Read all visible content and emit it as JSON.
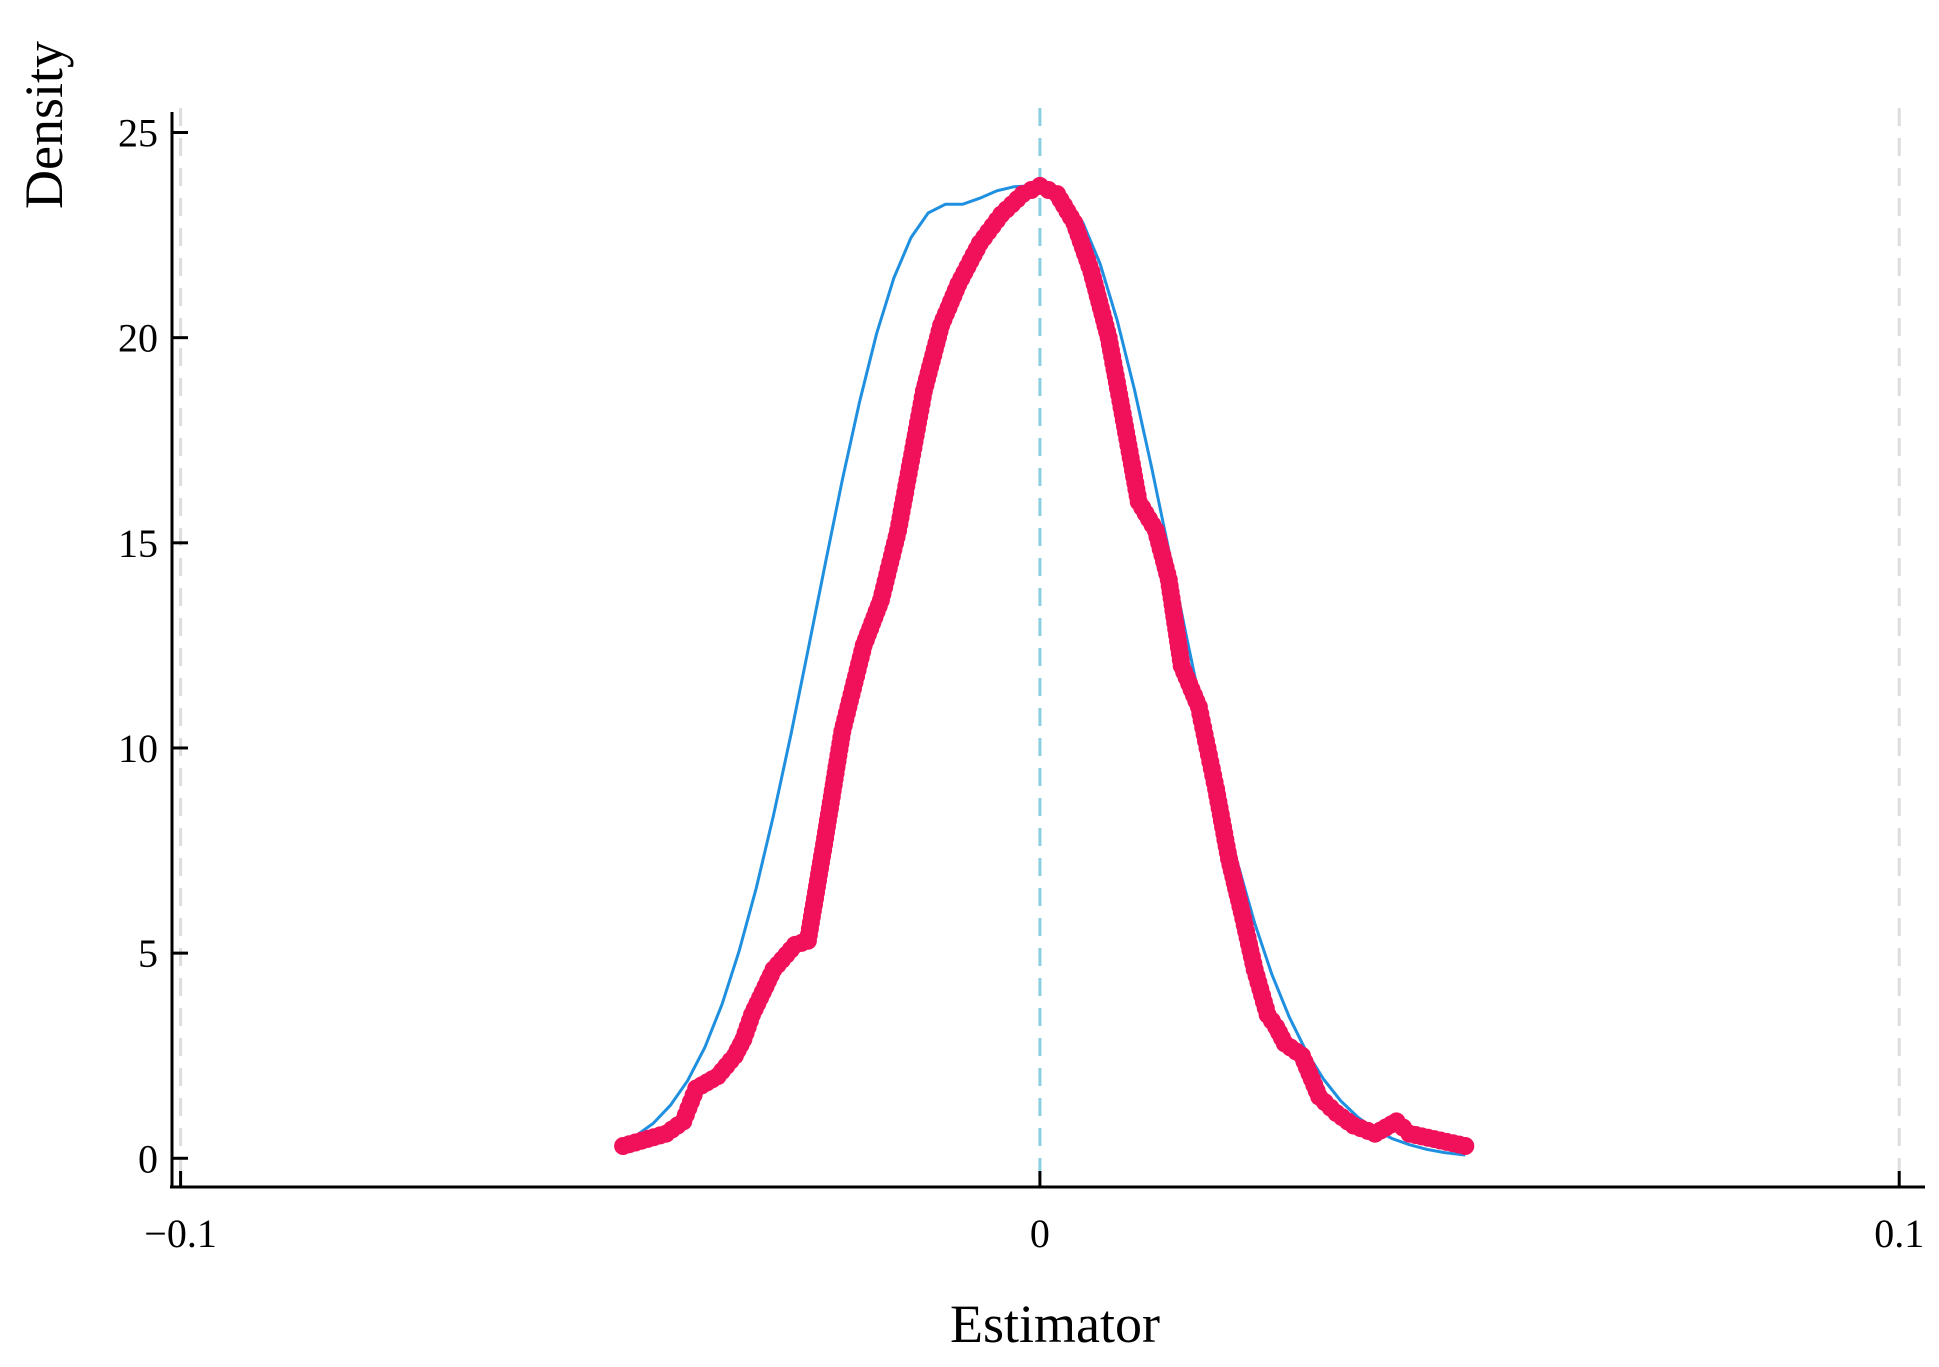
{
  "chart_data": {
    "type": "scatter",
    "title": "",
    "xlabel": "Estimator",
    "ylabel": "Density",
    "xlim": [
      -0.101,
      0.103
    ],
    "ylim": [
      -0.7,
      25.5
    ],
    "x_ticks": [
      {
        "value": -0.1,
        "label": "−0.1"
      },
      {
        "value": 0,
        "label": "0"
      },
      {
        "value": 0.1,
        "label": "0.1"
      }
    ],
    "y_ticks": [
      {
        "value": 0,
        "label": "0"
      },
      {
        "value": 5,
        "label": "5"
      },
      {
        "value": 10,
        "label": "10"
      },
      {
        "value": 15,
        "label": "15"
      },
      {
        "value": 20,
        "label": "20"
      },
      {
        "value": 25,
        "label": "25"
      }
    ],
    "grid": false,
    "vertical_reference_lines": [
      {
        "x": -0.1,
        "color": "#dddddd",
        "style": "dashed"
      },
      {
        "x": 0,
        "color": "#89cfe0",
        "style": "dashed"
      },
      {
        "x": 0.1,
        "color": "#dddddd",
        "style": "dashed"
      }
    ],
    "colors": {
      "points": "#f0115a",
      "normal_curve": "#1f8fe0",
      "axis": "#000000"
    },
    "series": [
      {
        "type": "line",
        "description_color": "#1f8fe0",
        "x": [
          -0.0485,
          -0.047,
          -0.045,
          -0.043,
          -0.041,
          -0.039,
          -0.037,
          -0.035,
          -0.033,
          -0.031,
          -0.029,
          -0.027,
          -0.025,
          -0.023,
          -0.021,
          -0.019,
          -0.017,
          -0.015,
          -0.013,
          -0.011,
          -0.009,
          -0.007,
          -0.005,
          -0.003,
          -0.001,
          0,
          0.001,
          0.003,
          0.005,
          0.007,
          0.009,
          0.011,
          0.013,
          0.015,
          0.017,
          0.019,
          0.021,
          0.023,
          0.025,
          0.027,
          0.029,
          0.031,
          0.033,
          0.035,
          0.037,
          0.039,
          0.041,
          0.043,
          0.045,
          0.047,
          0.0495
        ],
        "y": [
          0.38,
          0.55,
          0.85,
          1.29,
          1.89,
          2.7,
          3.75,
          5.05,
          6.59,
          8.36,
          10.3,
          12.37,
          14.47,
          16.53,
          18.43,
          20.1,
          21.45,
          22.44,
          23.04,
          23.25,
          23.25,
          23.4,
          23.58,
          23.68,
          23.7,
          23.7,
          23.68,
          23.4,
          22.8,
          21.8,
          20.42,
          18.74,
          16.84,
          14.82,
          12.77,
          10.77,
          8.89,
          7.2,
          5.73,
          4.48,
          3.45,
          2.6,
          1.93,
          1.4,
          1.0,
          0.7,
          0.48,
          0.33,
          0.22,
          0.14,
          0.08
        ]
      },
      {
        "type": "scatter",
        "x": [
          -0.0485,
          -0.0435,
          -0.0415,
          -0.04,
          -0.0375,
          -0.0355,
          -0.0345,
          -0.0335,
          -0.031,
          -0.0285,
          -0.027,
          -0.025,
          -0.023,
          -0.0205,
          -0.0185,
          -0.0165,
          -0.015,
          -0.0135,
          -0.0115,
          -0.0095,
          -0.007,
          -0.0045,
          -0.002,
          -0.001,
          0,
          0.001,
          0.002,
          0.004,
          0.006,
          0.008,
          0.0095,
          0.0115,
          0.0135,
          0.015,
          0.0165,
          0.0185,
          0.0195,
          0.0205,
          0.022,
          0.0235,
          0.025,
          0.0265,
          0.0275,
          0.0285,
          0.0305,
          0.0325,
          0.0345,
          0.0365,
          0.039,
          0.0415,
          0.043,
          0.0495
        ],
        "y": [
          0.3,
          0.6,
          0.9,
          1.7,
          2.0,
          2.5,
          2.9,
          3.5,
          4.6,
          5.2,
          5.3,
          7.8,
          10.4,
          12.5,
          13.6,
          15.3,
          17.0,
          18.7,
          20.3,
          21.3,
          22.3,
          23.0,
          23.5,
          23.6,
          23.7,
          23.6,
          23.5,
          22.8,
          21.6,
          20.0,
          18.3,
          16.0,
          15.3,
          14.1,
          12.0,
          11.0,
          10.0,
          9.0,
          7.3,
          6.0,
          4.6,
          3.5,
          3.2,
          2.8,
          2.5,
          1.5,
          1.1,
          0.8,
          0.6,
          0.9,
          0.6,
          0.3
        ]
      }
    ]
  }
}
